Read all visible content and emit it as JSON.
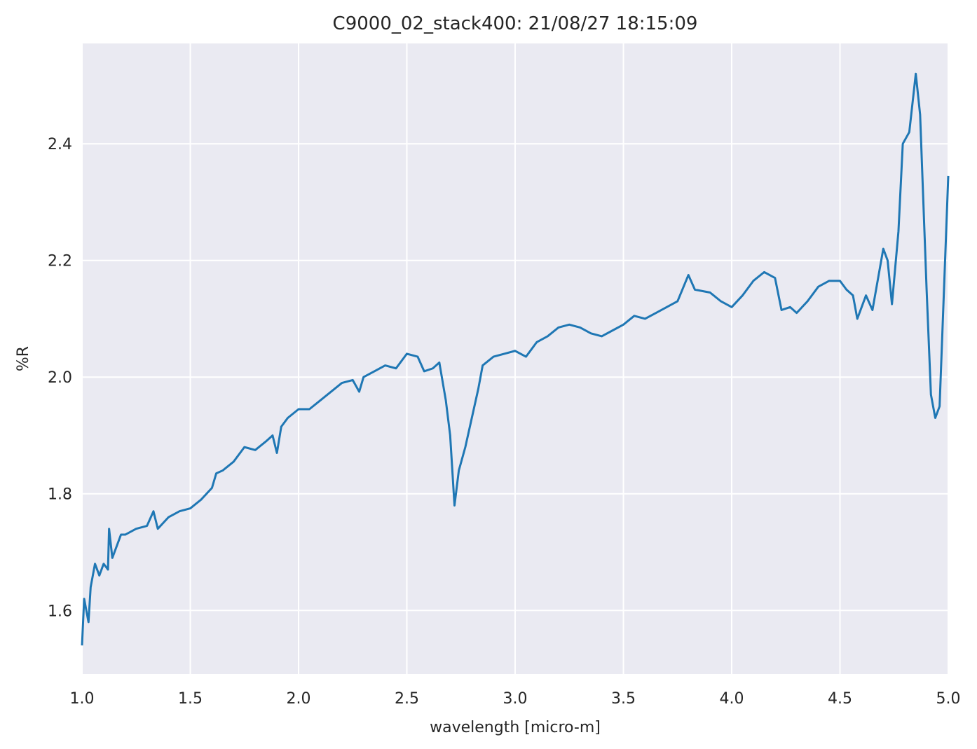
{
  "chart_data": {
    "type": "line",
    "title": "C9000_02_stack400:  21/08/27 18:15:09",
    "x_label": "wavelength [micro-m]",
    "y_label": "%R",
    "x": [
      1.0,
      1.01,
      1.02,
      1.03,
      1.04,
      1.06,
      1.08,
      1.1,
      1.12,
      1.125,
      1.14,
      1.16,
      1.18,
      1.2,
      1.25,
      1.3,
      1.33,
      1.35,
      1.4,
      1.45,
      1.5,
      1.55,
      1.6,
      1.62,
      1.65,
      1.7,
      1.75,
      1.8,
      1.85,
      1.88,
      1.9,
      1.92,
      1.95,
      2.0,
      2.05,
      2.1,
      2.15,
      2.2,
      2.25,
      2.28,
      2.3,
      2.35,
      2.4,
      2.45,
      2.5,
      2.55,
      2.58,
      2.62,
      2.65,
      2.68,
      2.7,
      2.72,
      2.74,
      2.77,
      2.8,
      2.83,
      2.85,
      2.9,
      2.95,
      3.0,
      3.05,
      3.1,
      3.15,
      3.2,
      3.25,
      3.3,
      3.35,
      3.4,
      3.45,
      3.5,
      3.55,
      3.6,
      3.65,
      3.7,
      3.75,
      3.8,
      3.83,
      3.9,
      3.95,
      4.0,
      4.05,
      4.1,
      4.15,
      4.2,
      4.23,
      4.27,
      4.3,
      4.35,
      4.4,
      4.45,
      4.5,
      4.53,
      4.56,
      4.58,
      4.62,
      4.65,
      4.7,
      4.72,
      4.74,
      4.77,
      4.79,
      4.82,
      4.85,
      4.87,
      4.9,
      4.92,
      4.94,
      4.96,
      5.0
    ],
    "series": [
      {
        "name": "%R",
        "color": "#1f77b4",
        "values": [
          1.54,
          1.62,
          1.6,
          1.58,
          1.64,
          1.68,
          1.66,
          1.68,
          1.67,
          1.74,
          1.69,
          1.71,
          1.73,
          1.73,
          1.74,
          1.745,
          1.77,
          1.74,
          1.76,
          1.77,
          1.775,
          1.79,
          1.81,
          1.835,
          1.84,
          1.855,
          1.88,
          1.875,
          1.89,
          1.9,
          1.87,
          1.915,
          1.93,
          1.945,
          1.945,
          1.96,
          1.975,
          1.99,
          1.995,
          1.975,
          2.0,
          2.01,
          2.02,
          2.015,
          2.04,
          2.035,
          2.01,
          2.015,
          2.025,
          1.96,
          1.9,
          1.78,
          1.84,
          1.88,
          1.93,
          1.98,
          2.02,
          2.035,
          2.04,
          2.045,
          2.035,
          2.06,
          2.07,
          2.085,
          2.09,
          2.085,
          2.075,
          2.07,
          2.08,
          2.09,
          2.105,
          2.1,
          2.11,
          2.12,
          2.13,
          2.175,
          2.15,
          2.145,
          2.13,
          2.12,
          2.14,
          2.165,
          2.18,
          2.17,
          2.115,
          2.12,
          2.11,
          2.13,
          2.155,
          2.165,
          2.165,
          2.15,
          2.14,
          2.1,
          2.14,
          2.115,
          2.22,
          2.2,
          2.125,
          2.25,
          2.4,
          2.42,
          2.52,
          2.45,
          2.15,
          1.97,
          1.93,
          1.95,
          2.345
        ]
      }
    ],
    "xlim": [
      1.0,
      5.0
    ],
    "ylim": [
      1.491,
      2.572
    ],
    "xticks": [
      {
        "value": 1.0,
        "label": "1.0"
      },
      {
        "value": 1.5,
        "label": "1.5"
      },
      {
        "value": 2.0,
        "label": "2.0"
      },
      {
        "value": 2.5,
        "label": "2.5"
      },
      {
        "value": 3.0,
        "label": "3.0"
      },
      {
        "value": 3.5,
        "label": "3.5"
      },
      {
        "value": 4.0,
        "label": "4.0"
      },
      {
        "value": 4.5,
        "label": "4.5"
      },
      {
        "value": 5.0,
        "label": "5.0"
      }
    ],
    "yticks": [
      1.6,
      1.8,
      {
        "value": 2.0,
        "label": "2.0"
      },
      2.2,
      2.4
    ],
    "grid": true
  }
}
